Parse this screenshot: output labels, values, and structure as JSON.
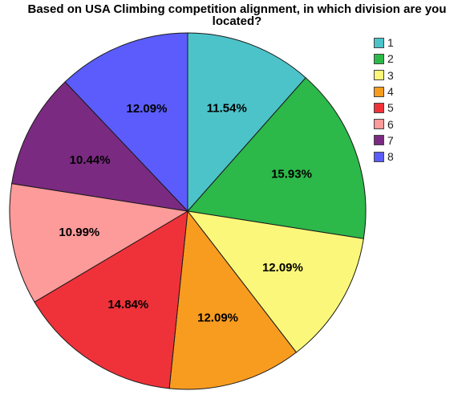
{
  "chart_data": {
    "type": "pie",
    "title_lines": [
      "Based on USA Climbing competition alignment, in which division are you",
      "located?"
    ],
    "slices": [
      {
        "label": "1",
        "value": 11.54,
        "value_label": "11.54%",
        "color": "#4cc3c9"
      },
      {
        "label": "2",
        "value": 15.93,
        "value_label": "15.93%",
        "color": "#2db84a"
      },
      {
        "label": "3",
        "value": 12.09,
        "value_label": "12.09%",
        "color": "#fbf77a"
      },
      {
        "label": "4",
        "value": 12.09,
        "value_label": "12.09%",
        "color": "#f89c20"
      },
      {
        "label": "5",
        "value": 14.84,
        "value_label": "14.84%",
        "color": "#ef3239"
      },
      {
        "label": "6",
        "value": 10.99,
        "value_label": "10.99%",
        "color": "#fd9a9a"
      },
      {
        "label": "7",
        "value": 10.44,
        "value_label": "10.44%",
        "color": "#7b2a82"
      },
      {
        "label": "8",
        "value": 12.09,
        "value_label": "12.09%",
        "color": "#5b5cfb"
      }
    ],
    "legend_position": "top-right"
  }
}
